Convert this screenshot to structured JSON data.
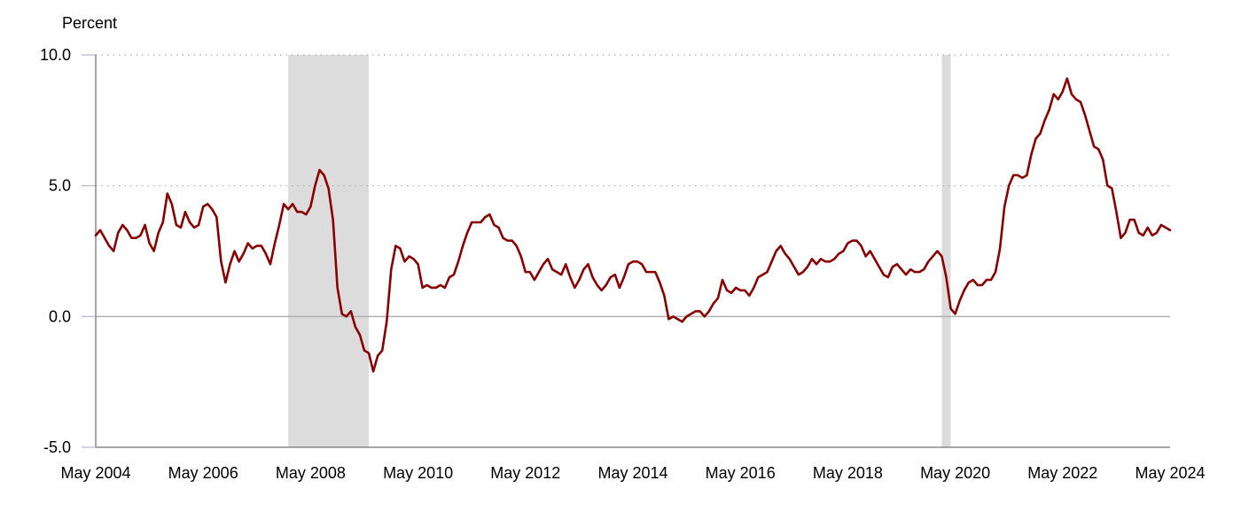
{
  "chart_data": {
    "type": "line",
    "ylabel": "Percent",
    "ylim": [
      -5,
      10
    ],
    "xlim": [
      "2004-05",
      "2024-05"
    ],
    "y_ticks": [
      {
        "value": 10,
        "label": "10.0"
      },
      {
        "value": 5,
        "label": "5.0"
      },
      {
        "value": 0,
        "label": "0.0"
      },
      {
        "value": -5,
        "label": "-5.0"
      }
    ],
    "x_ticks": [
      {
        "value": "2004-05",
        "label": "May 2004"
      },
      {
        "value": "2006-05",
        "label": "May 2006"
      },
      {
        "value": "2008-05",
        "label": "May 2008"
      },
      {
        "value": "2010-05",
        "label": "May 2010"
      },
      {
        "value": "2012-05",
        "label": "May 2012"
      },
      {
        "value": "2014-05",
        "label": "May 2014"
      },
      {
        "value": "2016-05",
        "label": "May 2016"
      },
      {
        "value": "2018-05",
        "label": "May 2018"
      },
      {
        "value": "2020-05",
        "label": "May 2020"
      },
      {
        "value": "2022-05",
        "label": "May 2022"
      },
      {
        "value": "2024-05",
        "label": "May 2024"
      }
    ],
    "grid": "dotted horizontal at 5.0 and 10.0, solid at 0.0",
    "recession_shading": [
      {
        "start": "2007-12",
        "end": "2009-06"
      },
      {
        "start": "2020-02",
        "end": "2020-04"
      }
    ],
    "colors": {
      "line": "#8b0000",
      "shading": "#dcdcdc",
      "zero_line": "#b0b0b0",
      "grid": "#b0b0b0"
    },
    "series": [
      {
        "values": [
          [
            "2004-05",
            3.1
          ],
          [
            "2004-06",
            3.3
          ],
          [
            "2004-07",
            3.0
          ],
          [
            "2004-08",
            2.7
          ],
          [
            "2004-09",
            2.5
          ],
          [
            "2004-10",
            3.2
          ],
          [
            "2004-11",
            3.5
          ],
          [
            "2004-12",
            3.3
          ],
          [
            "2005-01",
            3.0
          ],
          [
            "2005-02",
            3.0
          ],
          [
            "2005-03",
            3.1
          ],
          [
            "2005-04",
            3.5
          ],
          [
            "2005-05",
            2.8
          ],
          [
            "2005-06",
            2.5
          ],
          [
            "2005-07",
            3.2
          ],
          [
            "2005-08",
            3.6
          ],
          [
            "2005-09",
            4.7
          ],
          [
            "2005-10",
            4.3
          ],
          [
            "2005-11",
            3.5
          ],
          [
            "2005-12",
            3.4
          ],
          [
            "2006-01",
            4.0
          ],
          [
            "2006-02",
            3.6
          ],
          [
            "2006-03",
            3.4
          ],
          [
            "2006-04",
            3.5
          ],
          [
            "2006-05",
            4.2
          ],
          [
            "2006-06",
            4.3
          ],
          [
            "2006-07",
            4.1
          ],
          [
            "2006-08",
            3.8
          ],
          [
            "2006-09",
            2.1
          ],
          [
            "2006-10",
            1.3
          ],
          [
            "2006-11",
            2.0
          ],
          [
            "2006-12",
            2.5
          ],
          [
            "2007-01",
            2.1
          ],
          [
            "2007-02",
            2.4
          ],
          [
            "2007-03",
            2.8
          ],
          [
            "2007-04",
            2.6
          ],
          [
            "2007-05",
            2.7
          ],
          [
            "2007-06",
            2.7
          ],
          [
            "2007-07",
            2.4
          ],
          [
            "2007-08",
            2.0
          ],
          [
            "2007-09",
            2.8
          ],
          [
            "2007-10",
            3.5
          ],
          [
            "2007-11",
            4.3
          ],
          [
            "2007-12",
            4.1
          ],
          [
            "2008-01",
            4.3
          ],
          [
            "2008-02",
            4.0
          ],
          [
            "2008-03",
            4.0
          ],
          [
            "2008-04",
            3.9
          ],
          [
            "2008-05",
            4.2
          ],
          [
            "2008-06",
            5.0
          ],
          [
            "2008-07",
            5.6
          ],
          [
            "2008-08",
            5.4
          ],
          [
            "2008-09",
            4.9
          ],
          [
            "2008-10",
            3.7
          ],
          [
            "2008-11",
            1.1
          ],
          [
            "2008-12",
            0.1
          ],
          [
            "2009-01",
            0.0
          ],
          [
            "2009-02",
            0.2
          ],
          [
            "2009-03",
            -0.4
          ],
          [
            "2009-04",
            -0.7
          ],
          [
            "2009-05",
            -1.3
          ],
          [
            "2009-06",
            -1.4
          ],
          [
            "2009-07",
            -2.1
          ],
          [
            "2009-08",
            -1.5
          ],
          [
            "2009-09",
            -1.3
          ],
          [
            "2009-10",
            -0.2
          ],
          [
            "2009-11",
            1.8
          ],
          [
            "2009-12",
            2.7
          ],
          [
            "2010-01",
            2.6
          ],
          [
            "2010-02",
            2.1
          ],
          [
            "2010-03",
            2.3
          ],
          [
            "2010-04",
            2.2
          ],
          [
            "2010-05",
            2.0
          ],
          [
            "2010-06",
            1.1
          ],
          [
            "2010-07",
            1.2
          ],
          [
            "2010-08",
            1.1
          ],
          [
            "2010-09",
            1.1
          ],
          [
            "2010-10",
            1.2
          ],
          [
            "2010-11",
            1.1
          ],
          [
            "2010-12",
            1.5
          ],
          [
            "2011-01",
            1.6
          ],
          [
            "2011-02",
            2.1
          ],
          [
            "2011-03",
            2.7
          ],
          [
            "2011-04",
            3.2
          ],
          [
            "2011-05",
            3.6
          ],
          [
            "2011-06",
            3.6
          ],
          [
            "2011-07",
            3.6
          ],
          [
            "2011-08",
            3.8
          ],
          [
            "2011-09",
            3.9
          ],
          [
            "2011-10",
            3.5
          ],
          [
            "2011-11",
            3.4
          ],
          [
            "2011-12",
            3.0
          ],
          [
            "2012-01",
            2.9
          ],
          [
            "2012-02",
            2.9
          ],
          [
            "2012-03",
            2.7
          ],
          [
            "2012-04",
            2.3
          ],
          [
            "2012-05",
            1.7
          ],
          [
            "2012-06",
            1.7
          ],
          [
            "2012-07",
            1.4
          ],
          [
            "2012-08",
            1.7
          ],
          [
            "2012-09",
            2.0
          ],
          [
            "2012-10",
            2.2
          ],
          [
            "2012-11",
            1.8
          ],
          [
            "2012-12",
            1.7
          ],
          [
            "2013-01",
            1.6
          ],
          [
            "2013-02",
            2.0
          ],
          [
            "2013-03",
            1.5
          ],
          [
            "2013-04",
            1.1
          ],
          [
            "2013-05",
            1.4
          ],
          [
            "2013-06",
            1.8
          ],
          [
            "2013-07",
            2.0
          ],
          [
            "2013-08",
            1.5
          ],
          [
            "2013-09",
            1.2
          ],
          [
            "2013-10",
            1.0
          ],
          [
            "2013-11",
            1.2
          ],
          [
            "2013-12",
            1.5
          ],
          [
            "2014-01",
            1.6
          ],
          [
            "2014-02",
            1.1
          ],
          [
            "2014-03",
            1.5
          ],
          [
            "2014-04",
            2.0
          ],
          [
            "2014-05",
            2.1
          ],
          [
            "2014-06",
            2.1
          ],
          [
            "2014-07",
            2.0
          ],
          [
            "2014-08",
            1.7
          ],
          [
            "2014-09",
            1.7
          ],
          [
            "2014-10",
            1.7
          ],
          [
            "2014-11",
            1.3
          ],
          [
            "2014-12",
            0.8
          ],
          [
            "2015-01",
            -0.1
          ],
          [
            "2015-02",
            0.0
          ],
          [
            "2015-03",
            -0.1
          ],
          [
            "2015-04",
            -0.2
          ],
          [
            "2015-05",
            0.0
          ],
          [
            "2015-06",
            0.1
          ],
          [
            "2015-07",
            0.2
          ],
          [
            "2015-08",
            0.2
          ],
          [
            "2015-09",
            0.0
          ],
          [
            "2015-10",
            0.2
          ],
          [
            "2015-11",
            0.5
          ],
          [
            "2015-12",
            0.7
          ],
          [
            "2016-01",
            1.4
          ],
          [
            "2016-02",
            1.0
          ],
          [
            "2016-03",
            0.9
          ],
          [
            "2016-04",
            1.1
          ],
          [
            "2016-05",
            1.0
          ],
          [
            "2016-06",
            1.0
          ],
          [
            "2016-07",
            0.8
          ],
          [
            "2016-08",
            1.1
          ],
          [
            "2016-09",
            1.5
          ],
          [
            "2016-10",
            1.6
          ],
          [
            "2016-11",
            1.7
          ],
          [
            "2016-12",
            2.1
          ],
          [
            "2017-01",
            2.5
          ],
          [
            "2017-02",
            2.7
          ],
          [
            "2017-03",
            2.4
          ],
          [
            "2017-04",
            2.2
          ],
          [
            "2017-05",
            1.9
          ],
          [
            "2017-06",
            1.6
          ],
          [
            "2017-07",
            1.7
          ],
          [
            "2017-08",
            1.9
          ],
          [
            "2017-09",
            2.2
          ],
          [
            "2017-10",
            2.0
          ],
          [
            "2017-11",
            2.2
          ],
          [
            "2017-12",
            2.1
          ],
          [
            "2018-01",
            2.1
          ],
          [
            "2018-02",
            2.2
          ],
          [
            "2018-03",
            2.4
          ],
          [
            "2018-04",
            2.5
          ],
          [
            "2018-05",
            2.8
          ],
          [
            "2018-06",
            2.9
          ],
          [
            "2018-07",
            2.9
          ],
          [
            "2018-08",
            2.7
          ],
          [
            "2018-09",
            2.3
          ],
          [
            "2018-10",
            2.5
          ],
          [
            "2018-11",
            2.2
          ],
          [
            "2018-12",
            1.9
          ],
          [
            "2019-01",
            1.6
          ],
          [
            "2019-02",
            1.5
          ],
          [
            "2019-03",
            1.9
          ],
          [
            "2019-04",
            2.0
          ],
          [
            "2019-05",
            1.8
          ],
          [
            "2019-06",
            1.6
          ],
          [
            "2019-07",
            1.8
          ],
          [
            "2019-08",
            1.7
          ],
          [
            "2019-09",
            1.7
          ],
          [
            "2019-10",
            1.8
          ],
          [
            "2019-11",
            2.1
          ],
          [
            "2019-12",
            2.3
          ],
          [
            "2020-01",
            2.5
          ],
          [
            "2020-02",
            2.3
          ],
          [
            "2020-03",
            1.5
          ],
          [
            "2020-04",
            0.3
          ],
          [
            "2020-05",
            0.1
          ],
          [
            "2020-06",
            0.6
          ],
          [
            "2020-07",
            1.0
          ],
          [
            "2020-08",
            1.3
          ],
          [
            "2020-09",
            1.4
          ],
          [
            "2020-10",
            1.2
          ],
          [
            "2020-11",
            1.2
          ],
          [
            "2020-12",
            1.4
          ],
          [
            "2021-01",
            1.4
          ],
          [
            "2021-02",
            1.7
          ],
          [
            "2021-03",
            2.6
          ],
          [
            "2021-04",
            4.2
          ],
          [
            "2021-05",
            5.0
          ],
          [
            "2021-06",
            5.4
          ],
          [
            "2021-07",
            5.4
          ],
          [
            "2021-08",
            5.3
          ],
          [
            "2021-09",
            5.4
          ],
          [
            "2021-10",
            6.2
          ],
          [
            "2021-11",
            6.8
          ],
          [
            "2021-12",
            7.0
          ],
          [
            "2022-01",
            7.5
          ],
          [
            "2022-02",
            7.9
          ],
          [
            "2022-03",
            8.5
          ],
          [
            "2022-04",
            8.3
          ],
          [
            "2022-05",
            8.6
          ],
          [
            "2022-06",
            9.1
          ],
          [
            "2022-07",
            8.5
          ],
          [
            "2022-08",
            8.3
          ],
          [
            "2022-09",
            8.2
          ],
          [
            "2022-10",
            7.7
          ],
          [
            "2022-11",
            7.1
          ],
          [
            "2022-12",
            6.5
          ],
          [
            "2023-01",
            6.4
          ],
          [
            "2023-02",
            6.0
          ],
          [
            "2023-03",
            5.0
          ],
          [
            "2023-04",
            4.9
          ],
          [
            "2023-05",
            4.0
          ],
          [
            "2023-06",
            3.0
          ],
          [
            "2023-07",
            3.2
          ],
          [
            "2023-08",
            3.7
          ],
          [
            "2023-09",
            3.7
          ],
          [
            "2023-10",
            3.2
          ],
          [
            "2023-11",
            3.1
          ],
          [
            "2023-12",
            3.4
          ],
          [
            "2024-01",
            3.1
          ],
          [
            "2024-02",
            3.2
          ],
          [
            "2024-03",
            3.5
          ],
          [
            "2024-04",
            3.4
          ],
          [
            "2024-05",
            3.3
          ]
        ]
      }
    ]
  }
}
